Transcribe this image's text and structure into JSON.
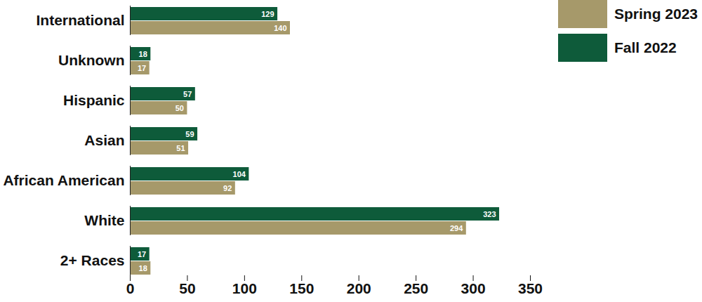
{
  "chart_data": {
    "type": "bar",
    "orientation": "horizontal",
    "categories": [
      "International",
      "Unknown",
      "Hispanic",
      "Asian",
      "African American",
      "White",
      "2+ Races"
    ],
    "series": [
      {
        "name": "Spring 2023",
        "color": "#a6996a",
        "values": [
          140,
          17,
          50,
          51,
          92,
          294,
          18
        ]
      },
      {
        "name": "Fall 2022",
        "color": "#0e5b3a",
        "values": [
          129,
          18,
          57,
          59,
          104,
          323,
          17
        ]
      }
    ],
    "xlim": [
      0,
      350
    ],
    "xticks": [
      0,
      50,
      100,
      150,
      200,
      250,
      300,
      350
    ],
    "grid": false,
    "legend": "upper right",
    "data_labels": true
  }
}
